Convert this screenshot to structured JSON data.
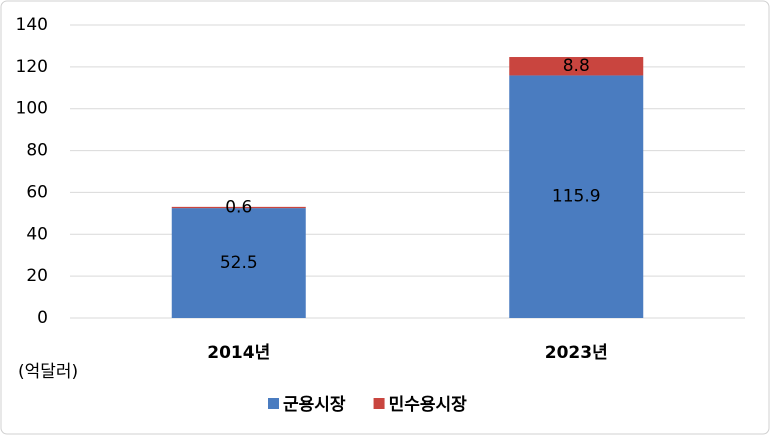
{
  "chart_data": {
    "type": "stacked-bar",
    "unit_label": "(억달러)",
    "categories": [
      "2014년",
      "2023년"
    ],
    "series": [
      {
        "name": "군용시장",
        "color": "#4a7cc0",
        "values": [
          52.5,
          115.9
        ]
      },
      {
        "name": "민수용시장",
        "color": "#c9453f",
        "values": [
          0.6,
          8.8
        ]
      }
    ],
    "ylim": [
      0,
      140
    ],
    "yticks": [
      0,
      20,
      40,
      60,
      80,
      100,
      120,
      140
    ],
    "grid": true,
    "legend": "bottom"
  }
}
